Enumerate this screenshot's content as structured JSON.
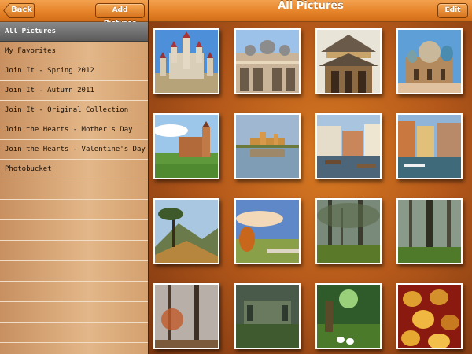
{
  "sidebar": {
    "back_label": "Back",
    "add_label": "Add Pictures",
    "items": [
      {
        "label": "All Pictures",
        "selected": true
      },
      {
        "label": "My Favorites"
      },
      {
        "label": "Join It - Spring 2012"
      },
      {
        "label": "Join It - Autumn 2011"
      },
      {
        "label": "Join It - Original Collection"
      },
      {
        "label": "Join the Hearts - Mother's Day"
      },
      {
        "label": "Join the Hearts - Valentine's Day"
      },
      {
        "label": "Photobucket"
      }
    ]
  },
  "main": {
    "title": "All Pictures",
    "edit_label": "Edit"
  },
  "photos": [
    {
      "name": "castle-photo",
      "scene": "castle"
    },
    {
      "name": "cathedral-photo",
      "scene": "cathedral"
    },
    {
      "name": "pagoda-photo",
      "scene": "pagoda"
    },
    {
      "name": "domed-church-photo",
      "scene": "church"
    },
    {
      "name": "hill-fortress-photo",
      "scene": "fortress"
    },
    {
      "name": "lake-castle-photo",
      "scene": "lakecastle"
    },
    {
      "name": "canal-houses-photo",
      "scene": "canal"
    },
    {
      "name": "venice-canal-photo",
      "scene": "venice"
    },
    {
      "name": "mountain-tree-photo",
      "scene": "mountain"
    },
    {
      "name": "autumn-meadow-photo",
      "scene": "meadow"
    },
    {
      "name": "misty-forest-photo",
      "scene": "forest"
    },
    {
      "name": "misty-forest-2-photo",
      "scene": "forest2"
    },
    {
      "name": "autumn-fog-trees-photo",
      "scene": "fogtrees"
    },
    {
      "name": "overgrown-ruin-photo",
      "scene": "ruin"
    },
    {
      "name": "fantasy-room-photo",
      "scene": "fantasy"
    },
    {
      "name": "carnival-masks-photo",
      "scene": "masks"
    }
  ],
  "colors": {
    "accent": "#e7862c",
    "selected_row": "#6e6e6e",
    "sidebar_bg": "#e3b789"
  }
}
